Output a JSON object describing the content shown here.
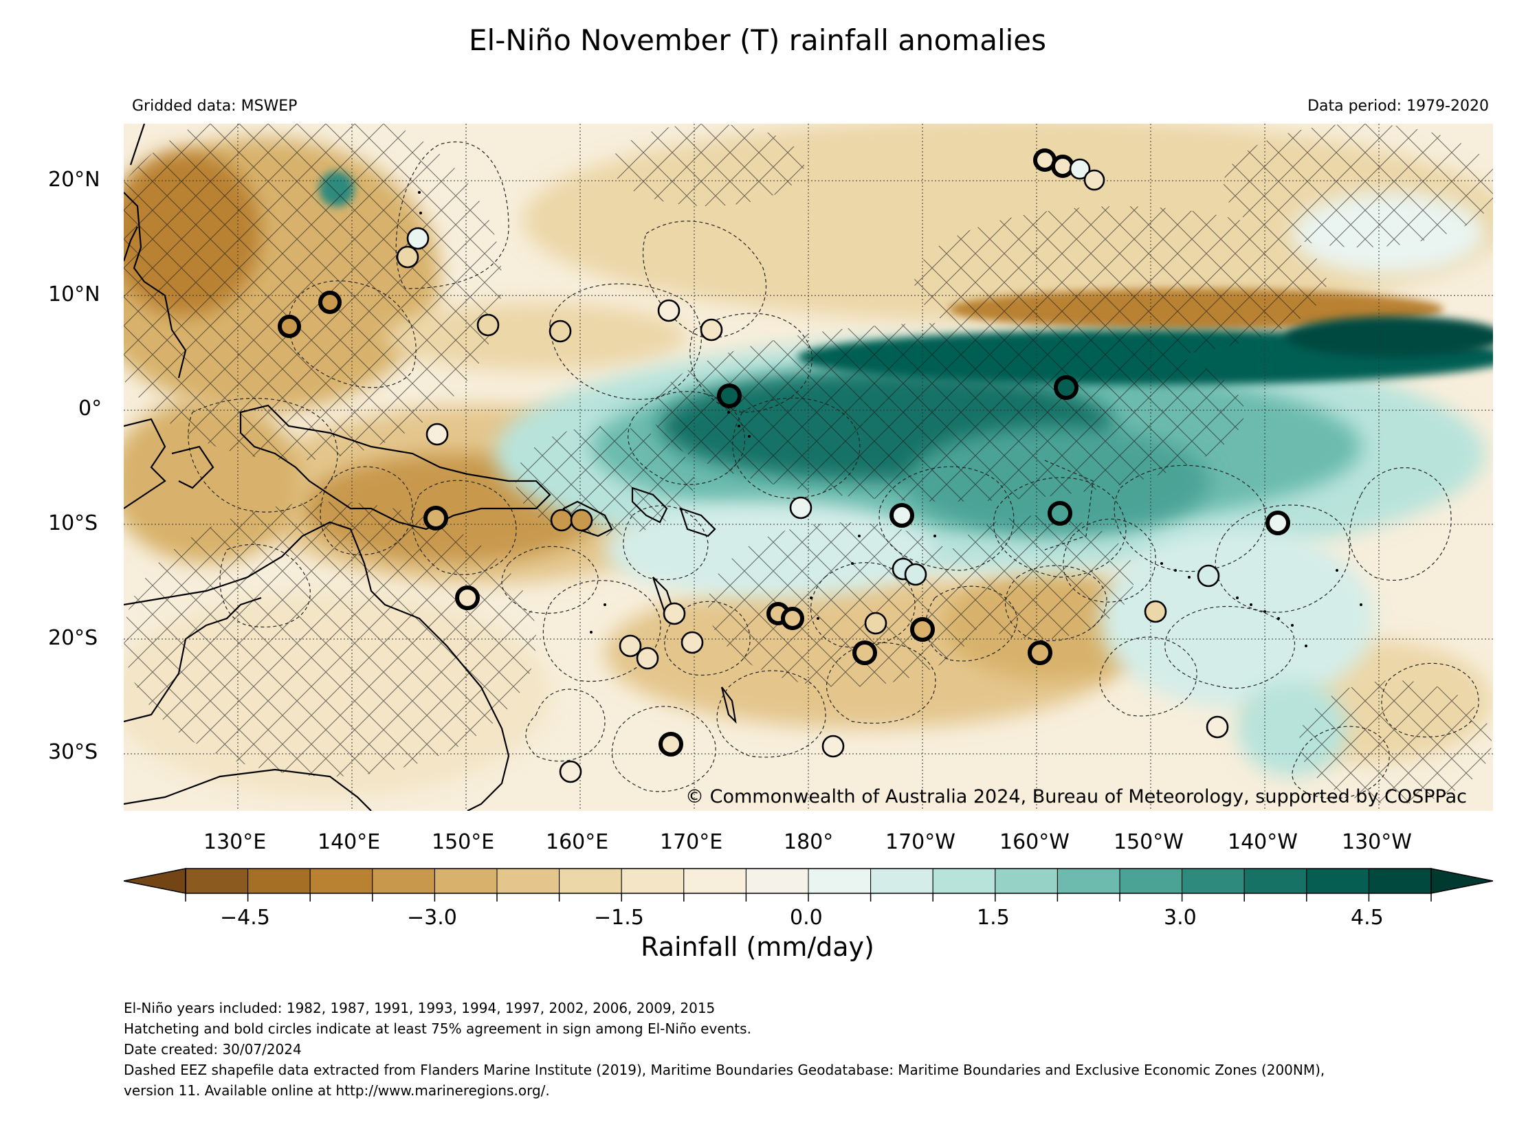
{
  "title": "El-Niño November (T) rainfall anomalies",
  "gridded_label": "Gridded data: MSWEP",
  "period_label": "Data period: 1979-2020",
  "copyright": "© Commonwealth of Australia 2024, Bureau of Meteorology, supported by COSPPac",
  "lat_labels": [
    {
      "text": "20°N",
      "lat": 20
    },
    {
      "text": "10°N",
      "lat": 10
    },
    {
      "text": "0°",
      "lat": 0
    },
    {
      "text": "10°S",
      "lat": -10
    },
    {
      "text": "20°S",
      "lat": -20
    },
    {
      "text": "30°S",
      "lat": -30
    }
  ],
  "lon_labels": [
    {
      "text": "130°E",
      "lon": 130
    },
    {
      "text": "140°E",
      "lon": 140
    },
    {
      "text": "150°E",
      "lon": 150
    },
    {
      "text": "160°E",
      "lon": 160
    },
    {
      "text": "170°E",
      "lon": 170
    },
    {
      "text": "180°",
      "lon": 180
    },
    {
      "text": "170°W",
      "lon": 190
    },
    {
      "text": "160°W",
      "lon": 200
    },
    {
      "text": "150°W",
      "lon": 210
    },
    {
      "text": "140°W",
      "lon": 220
    },
    {
      "text": "130°W",
      "lon": 230
    }
  ],
  "map_extent": {
    "lon_min": 120,
    "lon_max": 240,
    "lat_min": -35,
    "lat_max": 25
  },
  "colorbar": {
    "label": "Rainfall (mm/day)",
    "min": -5,
    "max": 5,
    "step": 0.5,
    "tick_values": [
      -4.5,
      -3.0,
      -1.5,
      0.0,
      1.5,
      3.0,
      4.5
    ],
    "tick_labels": [
      "−4.5",
      "−3.0",
      "−1.5",
      "0.0",
      "1.5",
      "3.0",
      "4.5"
    ],
    "colors": [
      "#8b5a1e",
      "#a66f26",
      "#b98132",
      "#c8994d",
      "#d8b26c",
      "#e4c68d",
      "#ecd7a9",
      "#f3e5c6",
      "#f7eedb",
      "#f5f2ea",
      "#eaf4f1",
      "#d4ede8",
      "#b8e3db",
      "#96d2c6",
      "#6cbbae",
      "#4ba396",
      "#2d8a7d",
      "#177266",
      "#065e53",
      "#01493f"
    ],
    "under_color": "#744514",
    "over_color": "#00392f"
  },
  "footnotes": [
    "El-Niño years included: 1982, 1987, 1991, 1993, 1994, 1997, 2002, 2006, 2009, 2015",
    "Hatcheting and bold circles indicate at least 75% agreement in sign among El-Niño events.",
    "Date created: 30/07/2024",
    "Dashed EEZ shapefile data extracted from Flanders Marine Institute (2019), Maritime Boundaries Geodatabase: Maritime Boundaries and Exclusive Economic Zones (200NM),",
    "version 11. Available online at http://www.marineregions.org/."
  ]
}
